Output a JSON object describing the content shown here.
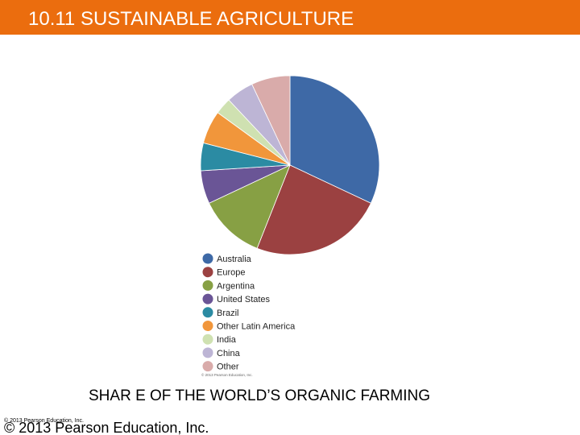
{
  "slide": {
    "title": "10.11 SUSTAINABLE AGRICULTURE",
    "caption": "SHAR E OF THE WORLD’S ORGANIC FARMING",
    "footer": "© 2013 Pearson Education, Inc.",
    "footer_small": "© 2013 Pearson Education, Inc."
  },
  "chart_data": {
    "type": "pie",
    "categories": [
      "Australia",
      "Europe",
      "Argentina",
      "United States",
      "Brazil",
      "Other Latin America",
      "India",
      "China",
      "Other"
    ],
    "values": [
      32,
      24,
      12,
      6,
      5,
      6,
      3,
      5,
      7
    ],
    "colors": [
      "#3e69a6",
      "#9b4141",
      "#87a044",
      "#6a5596",
      "#2b8ba3",
      "#f1963b",
      "#cfe1b1",
      "#bdb5d5",
      "#d9abaa"
    ],
    "credit": "© 2013 Pearson Education, Inc."
  }
}
